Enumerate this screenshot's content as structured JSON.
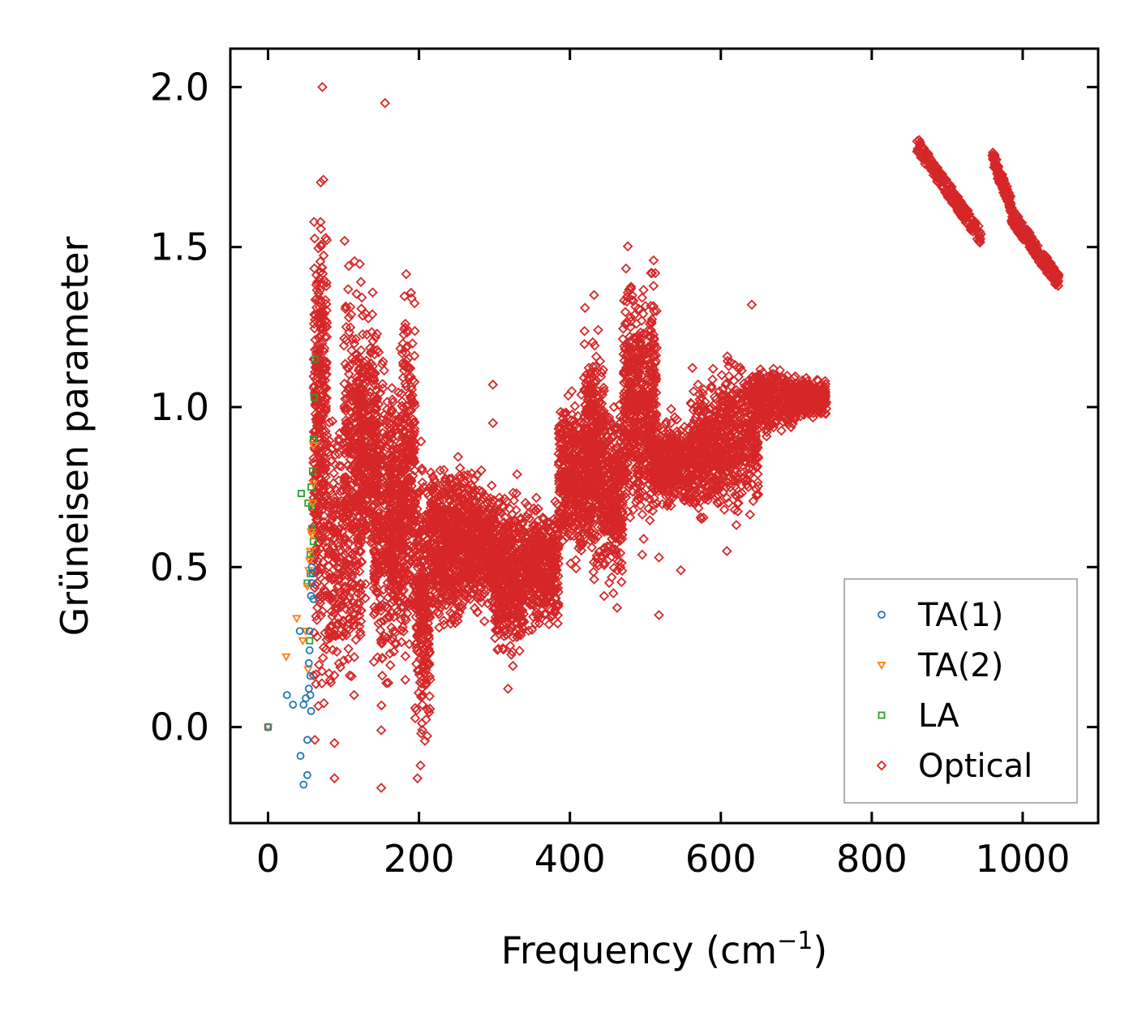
{
  "chart_data": {
    "type": "scatter",
    "title": "",
    "xlabel": "Frequency (cm",
    "xlabel_sup": "−1",
    "xlabel_end": ")",
    "ylabel": "Grüneisen parameter",
    "xlim": [
      -50,
      1100
    ],
    "ylim": [
      -0.3,
      2.12
    ],
    "xticks": [
      0,
      200,
      400,
      600,
      800,
      1000
    ],
    "xtick_labels": [
      "0",
      "200",
      "400",
      "600",
      "800",
      "1000"
    ],
    "yticks": [
      0.0,
      0.5,
      1.0,
      1.5,
      2.0
    ],
    "ytick_labels": [
      "0.0",
      "0.5",
      "1.0",
      "1.5",
      "2.0"
    ],
    "legend_position": "lower-right",
    "series": [
      {
        "name": "TA(1)",
        "marker": "circle",
        "color": "#1f77b4",
        "points": [
          [
            0,
            0
          ],
          [
            25,
            0.1
          ],
          [
            33,
            0.07
          ],
          [
            43,
            -0.09
          ],
          [
            47,
            -0.18
          ],
          [
            47,
            0.07
          ],
          [
            50,
            0.09
          ],
          [
            52,
            -0.04
          ],
          [
            52,
            -0.15
          ],
          [
            54,
            0.12
          ],
          [
            54,
            0.2
          ],
          [
            55,
            0.3
          ],
          [
            56,
            0.1
          ],
          [
            56,
            0.16
          ],
          [
            57,
            0.05
          ],
          [
            57,
            0.41
          ],
          [
            58,
            0.45
          ],
          [
            58,
            0.5
          ],
          [
            59,
            0.48
          ],
          [
            60,
            0.4
          ],
          [
            42,
            0.3
          ],
          [
            55,
            0.24
          ]
        ]
      },
      {
        "name": "TA(2)",
        "marker": "triangle-down",
        "color": "#ff7f0e",
        "points": [
          [
            0,
            0
          ],
          [
            24,
            0.22
          ],
          [
            38,
            0.34
          ],
          [
            46,
            0.27
          ],
          [
            50,
            0.3
          ],
          [
            52,
            0.44
          ],
          [
            54,
            0.49
          ],
          [
            55,
            0.52
          ],
          [
            56,
            0.55
          ],
          [
            57,
            0.61
          ],
          [
            58,
            0.6
          ],
          [
            59,
            0.7
          ],
          [
            60,
            0.76
          ],
          [
            60,
            0.88
          ],
          [
            53,
            0.18
          ]
        ]
      },
      {
        "name": "LA",
        "marker": "square",
        "color": "#2ca02c",
        "points": [
          [
            0,
            0
          ],
          [
            44,
            0.73
          ],
          [
            52,
            0.45
          ],
          [
            53,
            0.7
          ],
          [
            55,
            0.27
          ],
          [
            56,
            0.54
          ],
          [
            57,
            0.75
          ],
          [
            58,
            0.62
          ],
          [
            59,
            0.8
          ],
          [
            60,
            0.9
          ],
          [
            61,
            1.03
          ],
          [
            62,
            1.15
          ],
          [
            58,
            0.69
          ],
          [
            56,
            0.48
          ],
          [
            60,
            0.58
          ]
        ]
      },
      {
        "name": "Optical",
        "marker": "diamond",
        "color": "#d62728",
        "anchors": [
          [
            62,
            -0.04
          ],
          [
            72,
            2.0
          ],
          [
            88,
            -0.16
          ],
          [
            88,
            -0.05
          ],
          [
            114,
            0.1
          ],
          [
            150,
            -0.19
          ],
          [
            150,
            -0.01
          ],
          [
            155,
            1.95
          ],
          [
            198,
            -0.16
          ],
          [
            202,
            -0.12
          ],
          [
            203,
            -0.02
          ],
          [
            298,
            1.07
          ],
          [
            298,
            0.95
          ],
          [
            318,
            0.12
          ],
          [
            330,
            0.79
          ],
          [
            420,
            1.31
          ],
          [
            432,
            1.35
          ],
          [
            518,
            0.53
          ],
          [
            518,
            0.35
          ],
          [
            534,
            0.95
          ],
          [
            547,
            0.49
          ],
          [
            608,
            0.55
          ],
          [
            641,
            1.32
          ]
        ],
        "clusters": [
          {
            "x": [
              60,
              78
            ],
            "y": [
              -0.05,
              1.85
            ],
            "n": 360
          },
          {
            "x": [
              80,
              100
            ],
            "y": [
              0.0,
              1.1
            ],
            "n": 160
          },
          {
            "x": [
              100,
              125
            ],
            "y": [
              0.0,
              1.6
            ],
            "n": 320
          },
          {
            "x": [
              120,
              145
            ],
            "y": [
              0.3,
              1.42
            ],
            "n": 320
          },
          {
            "x": [
              140,
              165
            ],
            "y": [
              0.0,
              1.3
            ],
            "n": 260
          },
          {
            "x": [
              160,
              180
            ],
            "y": [
              0.1,
              1.2
            ],
            "n": 240
          },
          {
            "x": [
              175,
              195
            ],
            "y": [
              0.1,
              1.5
            ],
            "n": 280
          },
          {
            "x": [
              195,
              215
            ],
            "y": [
              -0.15,
              0.95
            ],
            "n": 260
          },
          {
            "x": [
              215,
              260
            ],
            "y": [
              0.25,
              0.9
            ],
            "n": 520
          },
          {
            "x": [
              260,
              300
            ],
            "y": [
              0.3,
              0.85
            ],
            "n": 440
          },
          {
            "x": [
              300,
              340
            ],
            "y": [
              0.15,
              0.8
            ],
            "n": 420
          },
          {
            "x": [
              340,
              385
            ],
            "y": [
              0.25,
              0.75
            ],
            "n": 400
          },
          {
            "x": [
              385,
              420
            ],
            "y": [
              0.45,
              1.1
            ],
            "n": 360
          },
          {
            "x": [
              418,
              445
            ],
            "y": [
              0.4,
              1.3
            ],
            "n": 380
          },
          {
            "x": [
              445,
              470
            ],
            "y": [
              0.35,
              1.1
            ],
            "n": 260
          },
          {
            "x": [
              470,
              515
            ],
            "y": [
              0.5,
              1.52
            ],
            "n": 560
          },
          {
            "x": [
              510,
              560
            ],
            "y": [
              0.65,
              1.0
            ],
            "n": 360
          },
          {
            "x": [
              560,
              600
            ],
            "y": [
              0.6,
              1.15
            ],
            "n": 320
          },
          {
            "x": [
              600,
              650
            ],
            "y": [
              0.6,
              1.2
            ],
            "n": 380
          },
          {
            "x": [
              640,
              700
            ],
            "y": [
              0.9,
              1.15
            ],
            "n": 340
          },
          {
            "x": [
              695,
              740
            ],
            "y": [
              0.95,
              1.1
            ],
            "n": 260
          }
        ],
        "bands": [
          {
            "x": [
              860,
              945
            ],
            "y": [
              1.82,
              1.53
            ],
            "n": 220
          },
          {
            "x": [
              960,
              985
            ],
            "y": [
              1.78,
              1.63
            ],
            "n": 120
          },
          {
            "x": [
              985,
              1048
            ],
            "y": [
              1.6,
              1.39
            ],
            "n": 220
          }
        ]
      }
    ]
  }
}
